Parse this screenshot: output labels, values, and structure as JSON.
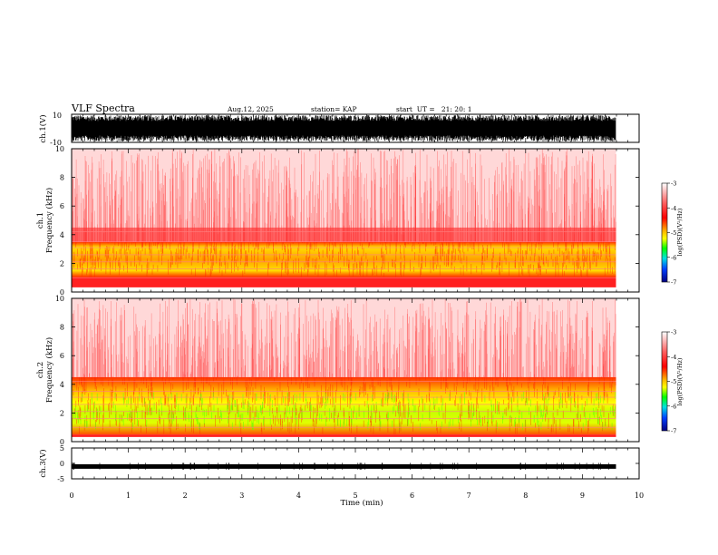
{
  "header": {
    "title": "VLF Spectra",
    "date": "Aug.12, 2025",
    "station": "station= KAP",
    "start_ut": "start  UT =   21: 20: 1"
  },
  "colors": {
    "spectrogram_bg": "#ffffff",
    "high_power": "#ffff00",
    "mid_power": "#ff0000",
    "waveform": "#000000"
  },
  "chart_data": [
    {
      "id": "ch1-waveform",
      "type": "line",
      "ylabel": "ch.1(V)",
      "ylim": [
        -10,
        10
      ],
      "yticks": [
        10,
        -10
      ],
      "xlim": [
        0,
        10
      ],
      "description_level": "dense full-scale noise"
    },
    {
      "id": "ch1-spectrogram",
      "type": "heatmap",
      "ylabel_line1": "ch.1",
      "ylabel_line2": "Frequency (kHz)",
      "ylim": [
        0,
        10
      ],
      "yticks": [
        0,
        2,
        4,
        6,
        8,
        10
      ],
      "xlim": [
        0,
        9.8
      ],
      "band_khz": [
        1.0,
        3.5
      ],
      "colorbar": {
        "label": "log(PSD)(V²/Hz)",
        "ticks": [
          -3,
          -4,
          -5,
          -6,
          -7
        ],
        "range": [
          -7,
          -3
        ]
      }
    },
    {
      "id": "ch2-spectrogram",
      "type": "heatmap",
      "ylabel_line1": "ch.2",
      "ylabel_line2": "Frequency (kHz)",
      "ylim": [
        0,
        10
      ],
      "yticks": [
        0,
        2,
        4,
        6,
        8,
        10
      ],
      "xlim": [
        0,
        9.8
      ],
      "band_khz": [
        0.5,
        4.5
      ],
      "colorbar": {
        "label": "log(PSD)(V²/Hz)",
        "ticks": [
          -3,
          -4,
          -5,
          -6,
          -7
        ],
        "range": [
          -7,
          -3
        ]
      }
    },
    {
      "id": "ch3-waveform",
      "type": "line",
      "ylabel": "ch.3(V)",
      "ylim": [
        -5,
        5
      ],
      "yticks": [
        5,
        0,
        -5
      ],
      "xlim": [
        0,
        10
      ],
      "level_v": -1.0
    }
  ],
  "xaxis": {
    "label": "Time (min)",
    "ticks": [
      "0",
      "1",
      "2",
      "3",
      "4",
      "5",
      "6",
      "7",
      "8",
      "9",
      "10"
    ]
  }
}
